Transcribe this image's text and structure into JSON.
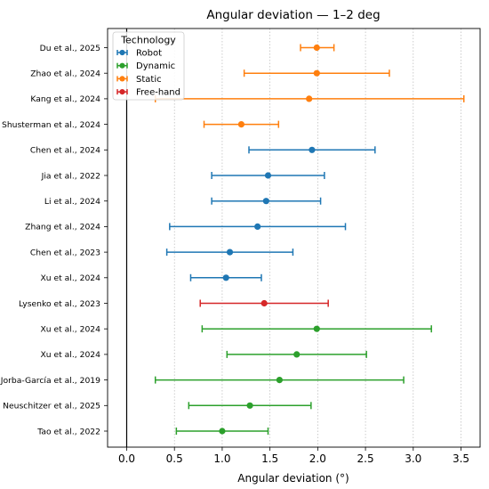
{
  "chart_data": {
    "type": "scatter",
    "title": "Angular deviation — 1–2 deg",
    "xlabel": "Angular deviation (°)",
    "ylabel": "",
    "xlim": [
      -0.2,
      3.7
    ],
    "xticks": [
      "0.0",
      "0.5",
      "1.0",
      "1.5",
      "2.0",
      "2.5",
      "3.0",
      "3.5"
    ],
    "grid": "vertical dotted",
    "legend": {
      "title": "Technology",
      "placement": "top-left",
      "entries": [
        {
          "name": "Robot",
          "color": "#1f77b4"
        },
        {
          "name": "Dynamic",
          "color": "#2ca02c"
        },
        {
          "name": "Static",
          "color": "#ff7f0e"
        },
        {
          "name": "Free-hand",
          "color": "#d62728"
        }
      ]
    },
    "studies": [
      {
        "label": "Du et al., 2025",
        "technology": "Static",
        "mean": 1.99,
        "low": 1.82,
        "high": 2.17
      },
      {
        "label": "Zhao et al., 2024",
        "technology": "Static",
        "mean": 1.99,
        "low": 1.23,
        "high": 2.75
      },
      {
        "label": "Kang et al., 2024",
        "technology": "Static",
        "mean": 1.91,
        "low": 0.3,
        "high": 3.53
      },
      {
        "label": "Shusterman et al., 2024",
        "technology": "Static",
        "mean": 1.2,
        "low": 0.81,
        "high": 1.59
      },
      {
        "label": "Chen et al., 2024",
        "technology": "Robot",
        "mean": 1.94,
        "low": 1.28,
        "high": 2.6
      },
      {
        "label": "Jia et al., 2022",
        "technology": "Robot",
        "mean": 1.48,
        "low": 0.89,
        "high": 2.07
      },
      {
        "label": "Li et al., 2024",
        "technology": "Robot",
        "mean": 1.46,
        "low": 0.89,
        "high": 2.03
      },
      {
        "label": "Zhang et al., 2024",
        "technology": "Robot",
        "mean": 1.37,
        "low": 0.45,
        "high": 2.29
      },
      {
        "label": "Chen et al., 2023",
        "technology": "Robot",
        "mean": 1.08,
        "low": 0.42,
        "high": 1.74
      },
      {
        "label": "Xu et al., 2024",
        "technology": "Robot",
        "mean": 1.04,
        "low": 0.67,
        "high": 1.41
      },
      {
        "label": "Lysenko et al., 2023",
        "technology": "Free-hand",
        "mean": 1.44,
        "low": 0.77,
        "high": 2.11
      },
      {
        "label": "Xu et al., 2024",
        "technology": "Dynamic",
        "mean": 1.99,
        "low": 0.79,
        "high": 3.19
      },
      {
        "label": "Xu et al., 2024",
        "technology": "Dynamic",
        "mean": 1.78,
        "low": 1.05,
        "high": 2.51
      },
      {
        "label": "Jorba-García et al., 2019",
        "technology": "Dynamic",
        "mean": 1.6,
        "low": 0.3,
        "high": 2.9
      },
      {
        "label": "Neuschitzer et al., 2025",
        "technology": "Dynamic",
        "mean": 1.29,
        "low": 0.65,
        "high": 1.93
      },
      {
        "label": "Tao et al., 2022",
        "technology": "Dynamic",
        "mean": 1.0,
        "low": 0.52,
        "high": 1.48
      }
    ]
  }
}
